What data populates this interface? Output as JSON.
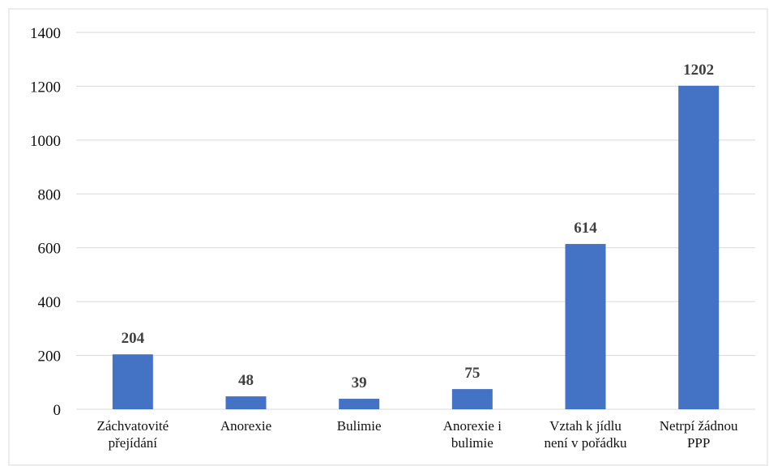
{
  "chart_data": {
    "type": "bar",
    "title": "",
    "xlabel": "",
    "ylabel": "",
    "categories": [
      [
        "Záchvatovité",
        "přejídání"
      ],
      [
        "Anorexie"
      ],
      [
        "Bulimie"
      ],
      [
        "Anorexie i",
        "bulimie"
      ],
      [
        "Vztah k jídlu",
        "není v pořádku"
      ],
      [
        "Netrpí žádnou",
        "PPP"
      ]
    ],
    "values": [
      204,
      48,
      39,
      75,
      614,
      1202
    ],
    "data_labels": [
      "204",
      "48",
      "39",
      "75",
      "614",
      "1202"
    ],
    "ylim": [
      0,
      1400
    ],
    "yticks": [
      0,
      200,
      400,
      600,
      800,
      1000,
      1200,
      1400
    ],
    "grid": true,
    "legend": "none",
    "colors": {
      "bar": "#4472C4",
      "grid": "#D9D9D9",
      "frame": "#D9D9D9"
    }
  }
}
